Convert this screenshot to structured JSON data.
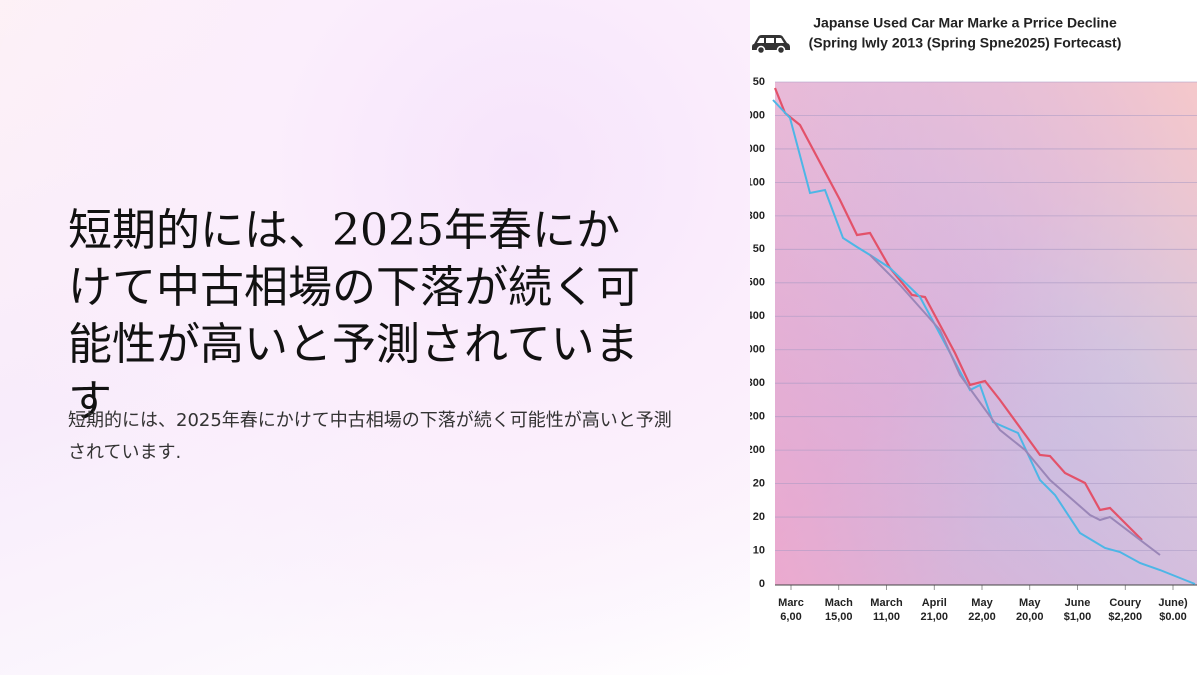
{
  "slide": {
    "heading": "短期的には、2025年春にかけて中古相場の下落が続く可能性が高いと予測されています",
    "body": "短期的には、2025年春にかけて中古相場の下落が続く可能性が高いと予測されています.",
    "figure": {
      "title_lines": [
        "Japanse Used Car Mar Marke a Prrice Decline",
        "(Spring lwly 2013 (Spring Spne2025) Fortecast)"
      ],
      "y_labels": [
        "50",
        "000",
        "000",
        "100",
        "300",
        "50",
        "500",
        "400",
        "000",
        "300",
        "200",
        "200",
        "20",
        "20",
        "10",
        "0"
      ],
      "x_labels": [
        [
          "Marc",
          "6,00"
        ],
        [
          "Mach",
          "15,00"
        ],
        [
          "March",
          "11,00"
        ],
        [
          "April",
          "21,00"
        ],
        [
          "May",
          "22,00"
        ],
        [
          "May",
          "20,00"
        ],
        [
          "June",
          "$1,00"
        ],
        [
          "Coury",
          "$2,200"
        ],
        [
          "June)",
          "$0.00"
        ]
      ]
    }
  }
}
